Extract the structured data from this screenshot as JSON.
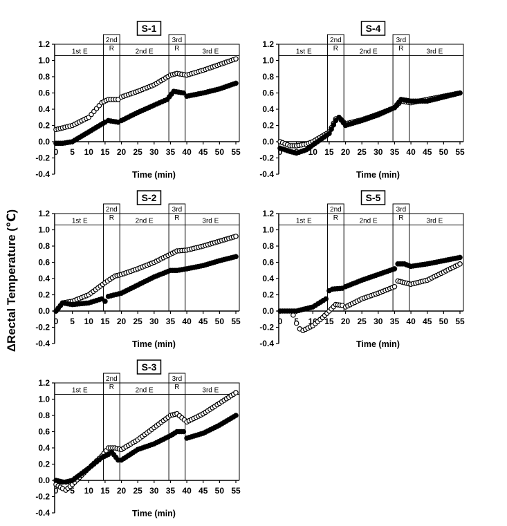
{
  "y_axis_label": "ΔRectal Temperature (℃)",
  "chart_data": [
    {
      "type": "scatter",
      "title": "S-1",
      "xlabel": "Time (min)",
      "xlim": [
        0,
        55
      ],
      "ylim": [
        -0.4,
        1.2
      ],
      "x_ticks": [
        "0",
        "5",
        "10",
        "15",
        "20",
        "25",
        "30",
        "35",
        "40",
        "45",
        "50",
        "55"
      ],
      "y_ticks": [
        "-0.4",
        "-0.2",
        "0.0",
        "0.2",
        "0.4",
        "0.6",
        "0.8",
        "1.0",
        "1.2"
      ],
      "phases": [
        {
          "label": "1st E",
          "start": 0,
          "end": 14.5
        },
        {
          "label": "2nd R",
          "start": 14.5,
          "end": 19.5
        },
        {
          "label": "2nd E",
          "start": 19.5,
          "end": 34.5
        },
        {
          "label": "3rd R",
          "start": 34.5,
          "end": 39.5
        },
        {
          "label": "3rd E",
          "start": 39.5,
          "end": 55
        }
      ],
      "series": [
        {
          "name": "open",
          "marker": "open-circle",
          "x": [
            0,
            2,
            5,
            10,
            14,
            16,
            19,
            20,
            25,
            30,
            35,
            37,
            40,
            45,
            50,
            55
          ],
          "y": [
            0.15,
            0.17,
            0.2,
            0.3,
            0.48,
            0.52,
            0.52,
            0.55,
            0.62,
            0.7,
            0.82,
            0.84,
            0.82,
            0.88,
            0.95,
            1.02
          ]
        },
        {
          "name": "filled",
          "marker": "filled-circle",
          "x": [
            0,
            2,
            5,
            10,
            15,
            16,
            19,
            20,
            25,
            30,
            34,
            36,
            39,
            40,
            45,
            50,
            55
          ],
          "y": [
            -0.02,
            -0.02,
            0.0,
            0.12,
            0.24,
            0.26,
            0.24,
            0.26,
            0.36,
            0.45,
            0.52,
            0.62,
            0.6,
            0.56,
            0.6,
            0.65,
            0.72
          ]
        }
      ]
    },
    {
      "type": "scatter",
      "title": "S-4",
      "xlabel": "Time (min)",
      "xlim": [
        0,
        55
      ],
      "ylim": [
        -0.4,
        1.2
      ],
      "x_ticks": [
        "0",
        "5",
        "10",
        "15",
        "20",
        "25",
        "30",
        "35",
        "40",
        "45",
        "50",
        "55"
      ],
      "y_ticks": [
        "-0.4",
        "-0.2",
        "0.0",
        "0.2",
        "0.4",
        "0.6",
        "0.8",
        "1.0",
        "1.2"
      ],
      "phases": [
        {
          "label": "1st E",
          "start": 0,
          "end": 14.5
        },
        {
          "label": "2nd R",
          "start": 14.5,
          "end": 19.5
        },
        {
          "label": "2nd E",
          "start": 19.5,
          "end": 34.5
        },
        {
          "label": "3rd R",
          "start": 34.5,
          "end": 39.5
        },
        {
          "label": "3rd E",
          "start": 39.5,
          "end": 55
        }
      ],
      "series": [
        {
          "name": "open",
          "marker": "open-circle",
          "x": [
            0,
            3,
            5,
            8,
            10,
            15,
            17,
            18,
            20,
            25,
            30,
            35,
            37,
            40,
            45,
            50,
            55
          ],
          "y": [
            0.0,
            -0.05,
            -0.05,
            -0.03,
            0.0,
            0.12,
            0.28,
            0.3,
            0.22,
            0.27,
            0.34,
            0.42,
            0.5,
            0.48,
            0.52,
            0.56,
            0.6
          ]
        },
        {
          "name": "filled",
          "marker": "filled-circle",
          "x": [
            0,
            3,
            5,
            8,
            10,
            15,
            17,
            18,
            20,
            25,
            30,
            35,
            37,
            40,
            45,
            50,
            55
          ],
          "y": [
            -0.08,
            -0.12,
            -0.14,
            -0.1,
            -0.04,
            0.1,
            0.26,
            0.3,
            0.2,
            0.26,
            0.33,
            0.42,
            0.52,
            0.5,
            0.5,
            0.55,
            0.6
          ]
        }
      ]
    },
    {
      "type": "scatter",
      "title": "S-2",
      "xlabel": "Time (min)",
      "xlim": [
        0,
        55
      ],
      "ylim": [
        -0.4,
        1.2
      ],
      "x_ticks": [
        "0",
        "5",
        "10",
        "15",
        "20",
        "25",
        "30",
        "35",
        "40",
        "45",
        "50",
        "55"
      ],
      "y_ticks": [
        "-0.4",
        "-0.2",
        "0.0",
        "0.2",
        "0.4",
        "0.6",
        "0.8",
        "1.0",
        "1.2"
      ],
      "phases": [
        {
          "label": "1st E",
          "start": 0,
          "end": 14.5
        },
        {
          "label": "2nd R",
          "start": 14.5,
          "end": 19.5
        },
        {
          "label": "2nd E",
          "start": 19.5,
          "end": 34.5
        },
        {
          "label": "3rd R",
          "start": 34.5,
          "end": 39.5
        },
        {
          "label": "3rd E",
          "start": 39.5,
          "end": 55
        }
      ],
      "series": [
        {
          "name": "open",
          "marker": "open-circle",
          "x": [
            0,
            2,
            5,
            10,
            15,
            18,
            20,
            25,
            30,
            35,
            37,
            40,
            45,
            50,
            55
          ],
          "y": [
            0.0,
            0.1,
            0.12,
            0.2,
            0.35,
            0.43,
            0.45,
            0.52,
            0.6,
            0.7,
            0.74,
            0.75,
            0.8,
            0.86,
            0.92
          ]
        },
        {
          "name": "filled",
          "marker": "filled-circle",
          "x": [
            0,
            2,
            5,
            10,
            14,
            15,
            16,
            20,
            25,
            30,
            35,
            37,
            40,
            45,
            50,
            55
          ],
          "y": [
            0.0,
            0.1,
            0.08,
            0.1,
            0.15,
            0.12,
            0.18,
            0.22,
            0.32,
            0.42,
            0.5,
            0.5,
            0.52,
            0.56,
            0.62,
            0.67
          ]
        }
      ]
    },
    {
      "type": "scatter",
      "title": "S-5",
      "xlabel": "Time (min)",
      "xlim": [
        0,
        55
      ],
      "ylim": [
        -0.4,
        1.2
      ],
      "x_ticks": [
        "0",
        "5",
        "10",
        "15",
        "20",
        "25",
        "30",
        "35",
        "40",
        "45",
        "50",
        "55"
      ],
      "y_ticks": [
        "-0.4",
        "-0.2",
        "0.0",
        "0.2",
        "0.4",
        "0.6",
        "0.8",
        "1.0",
        "1.2"
      ],
      "phases": [
        {
          "label": "1st E",
          "start": 0,
          "end": 14.5
        },
        {
          "label": "2nd R",
          "start": 14.5,
          "end": 19.5
        },
        {
          "label": "2nd E",
          "start": 19.5,
          "end": 34.5
        },
        {
          "label": "3rd R",
          "start": 34.5,
          "end": 39.5
        },
        {
          "label": "3rd E",
          "start": 39.5,
          "end": 55
        }
      ],
      "series": [
        {
          "name": "open",
          "marker": "open-circle",
          "x": [
            4,
            5,
            6,
            7,
            10,
            13,
            15,
            17,
            19,
            20,
            25,
            30,
            35,
            36,
            38,
            40,
            45,
            50,
            55
          ],
          "y": [
            -0.05,
            -0.15,
            -0.22,
            -0.24,
            -0.18,
            -0.08,
            0.0,
            0.08,
            0.07,
            0.05,
            0.15,
            0.22,
            0.3,
            0.37,
            0.35,
            0.33,
            0.38,
            0.48,
            0.58
          ]
        },
        {
          "name": "filled",
          "marker": "filled-circle",
          "x": [
            0,
            5,
            10,
            14,
            15,
            16,
            19,
            20,
            25,
            30,
            35,
            36,
            38,
            40,
            45,
            50,
            55
          ],
          "y": [
            0.0,
            0.0,
            0.05,
            0.15,
            0.25,
            0.27,
            0.28,
            0.3,
            0.38,
            0.45,
            0.52,
            0.58,
            0.58,
            0.55,
            0.58,
            0.62,
            0.66
          ]
        }
      ]
    },
    {
      "type": "scatter",
      "title": "S-3",
      "xlabel": "Time (min)",
      "xlim": [
        0,
        55
      ],
      "ylim": [
        -0.4,
        1.2
      ],
      "x_ticks": [
        "0",
        "5",
        "10",
        "15",
        "20",
        "25",
        "30",
        "35",
        "40",
        "45",
        "50",
        "55"
      ],
      "y_ticks": [
        "-0.4",
        "-0.2",
        "0.0",
        "0.2",
        "0.4",
        "0.6",
        "0.8",
        "1.0",
        "1.2"
      ],
      "phases": [
        {
          "label": "1st E",
          "start": 0,
          "end": 14.5
        },
        {
          "label": "2nd R",
          "start": 14.5,
          "end": 19.5
        },
        {
          "label": "2nd E",
          "start": 19.5,
          "end": 34.5
        },
        {
          "label": "3rd R",
          "start": 34.5,
          "end": 39.5
        },
        {
          "label": "3rd E",
          "start": 39.5,
          "end": 55
        }
      ],
      "series": [
        {
          "name": "open",
          "marker": "open-circle",
          "x": [
            0,
            2,
            3,
            5,
            10,
            14,
            16,
            18,
            20,
            25,
            30,
            35,
            37,
            40,
            45,
            50,
            55
          ],
          "y": [
            -0.05,
            -0.1,
            -0.12,
            -0.05,
            0.15,
            0.3,
            0.4,
            0.4,
            0.38,
            0.5,
            0.65,
            0.8,
            0.82,
            0.72,
            0.82,
            0.95,
            1.08
          ]
        },
        {
          "name": "filled",
          "marker": "filled-circle",
          "x": [
            0,
            2,
            3,
            5,
            10,
            14,
            16,
            17,
            19,
            20,
            25,
            30,
            35,
            37,
            39,
            40,
            45,
            50,
            55
          ],
          "y": [
            0.0,
            -0.02,
            -0.02,
            0.0,
            0.15,
            0.28,
            0.32,
            0.35,
            0.25,
            0.25,
            0.38,
            0.45,
            0.55,
            0.6,
            0.6,
            0.52,
            0.58,
            0.68,
            0.8
          ]
        }
      ]
    }
  ]
}
